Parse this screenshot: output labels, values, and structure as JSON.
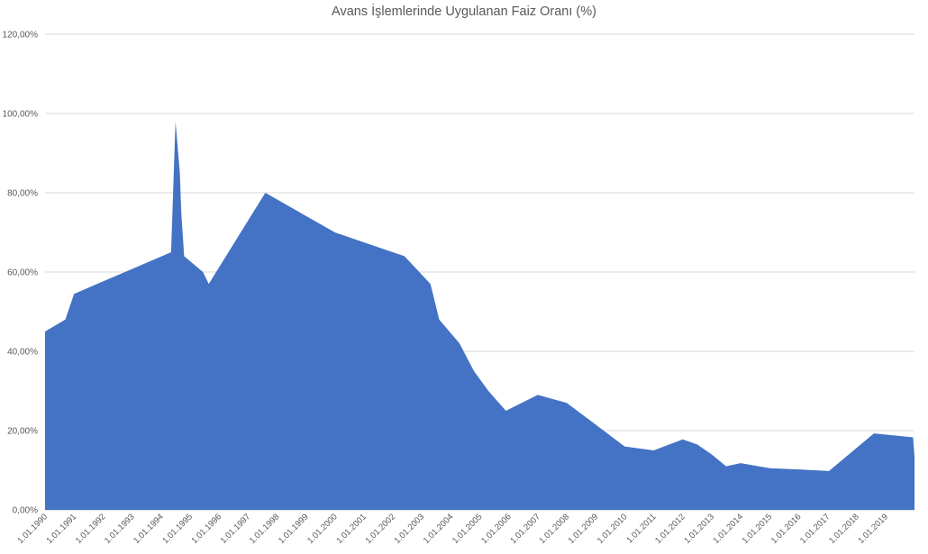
{
  "chart_data": {
    "type": "area",
    "title": "Avans İşlemlerinde Uygulanan Faiz Oranı (%)",
    "xlabel": "",
    "ylabel": "",
    "ylim": [
      0,
      120
    ],
    "yticks": [
      0,
      20,
      40,
      60,
      80,
      100,
      120
    ],
    "ytick_labels": [
      "0,00%",
      "20,00%",
      "40,00%",
      "60,00%",
      "80,00%",
      "100,00%",
      "120,00%"
    ],
    "xlim": [
      1990.0,
      2020.0
    ],
    "xtick_labels": [
      "1.01.1990",
      "1.01.1991",
      "1.01.1992",
      "1.01.1993",
      "1.01.1994",
      "1.01.1995",
      "1.01.1996",
      "1.01.1997",
      "1.01.1998",
      "1.01.1999",
      "1.01.2000",
      "1.01.2001",
      "1.01.2002",
      "1.01.2003",
      "1.01.2004",
      "1.01.2005",
      "1.01.2006",
      "1.01.2007",
      "1.01.2008",
      "1.01.2009",
      "1.01.2010",
      "1.01.2011",
      "1.01.2012",
      "1.01.2013",
      "1.01.2014",
      "1.01.2015",
      "1.01.2016",
      "1.01.2017",
      "1.01.2018",
      "1.01.2019"
    ],
    "grid": true,
    "legend": "none",
    "fill_color": "#4472C4",
    "series": [
      {
        "x": [
          1990.0,
          1990.7,
          1991.0,
          1994.35,
          1994.5,
          1994.65,
          1994.7,
          1994.8,
          1995.45,
          1995.65,
          1997.6,
          1998.8,
          2000.0,
          2001.2,
          2002.4,
          2003.3,
          2003.6,
          2004.3,
          2004.8,
          2005.3,
          2005.9,
          2007.0,
          2008.0,
          2009.0,
          2010.0,
          2011.0,
          2012.0,
          2012.5,
          2013.0,
          2013.5,
          2014.0,
          2015.0,
          2016.0,
          2017.05,
          2018.6,
          2019.95,
          2020.0
        ],
        "values": [
          45.0,
          48.0,
          54.5,
          65.0,
          98.0,
          85.0,
          75.0,
          64.0,
          60.0,
          57.0,
          80.0,
          75.0,
          70.0,
          67.0,
          64.0,
          57.0,
          48.0,
          42.0,
          35.0,
          30.0,
          25.0,
          29.0,
          27.0,
          21.5,
          16.0,
          15.0,
          17.8,
          16.5,
          14.0,
          11.0,
          11.8,
          10.5,
          10.2,
          9.8,
          19.3,
          18.3,
          13.5
        ]
      }
    ]
  }
}
